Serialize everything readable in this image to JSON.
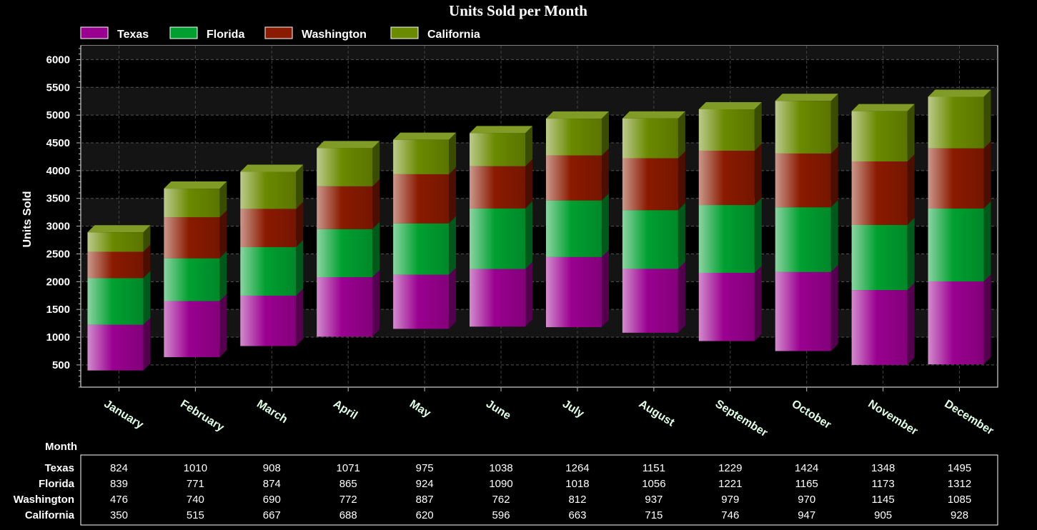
{
  "chart_data": {
    "type": "bar",
    "stacked": true,
    "style": "3d",
    "title": "Units Sold per Month",
    "ylabel": "Units Sold",
    "xlabel": "",
    "ylim": [
      100,
      6250
    ],
    "yticks": [
      500,
      1000,
      1500,
      2000,
      2500,
      3000,
      3500,
      4000,
      4500,
      5000,
      5500,
      6000
    ],
    "grid": true,
    "legend_position": "top-left",
    "floating_bases": [
      400,
      640,
      840,
      1010,
      1150,
      1190,
      1180,
      1080,
      930,
      750,
      500,
      510
    ],
    "categories": [
      "January",
      "February",
      "March",
      "April",
      "May",
      "June",
      "July",
      "August",
      "September",
      "October",
      "November",
      "December"
    ],
    "series": [
      {
        "name": "Texas",
        "color": "#9a0090",
        "values": [
          824,
          1010,
          908,
          1071,
          975,
          1038,
          1264,
          1151,
          1229,
          1424,
          1348,
          1495
        ]
      },
      {
        "name": "Florida",
        "color": "#00a030",
        "values": [
          839,
          771,
          874,
          865,
          924,
          1090,
          1018,
          1056,
          1221,
          1165,
          1173,
          1312
        ]
      },
      {
        "name": "Washington",
        "color": "#8a1a00",
        "values": [
          476,
          740,
          690,
          772,
          887,
          762,
          812,
          937,
          979,
          970,
          1145,
          1085
        ]
      },
      {
        "name": "California",
        "color": "#6a8a00",
        "values": [
          350,
          515,
          667,
          688,
          620,
          596,
          663,
          715,
          746,
          947,
          905,
          928
        ]
      }
    ]
  },
  "table": {
    "header_label": "Month"
  }
}
